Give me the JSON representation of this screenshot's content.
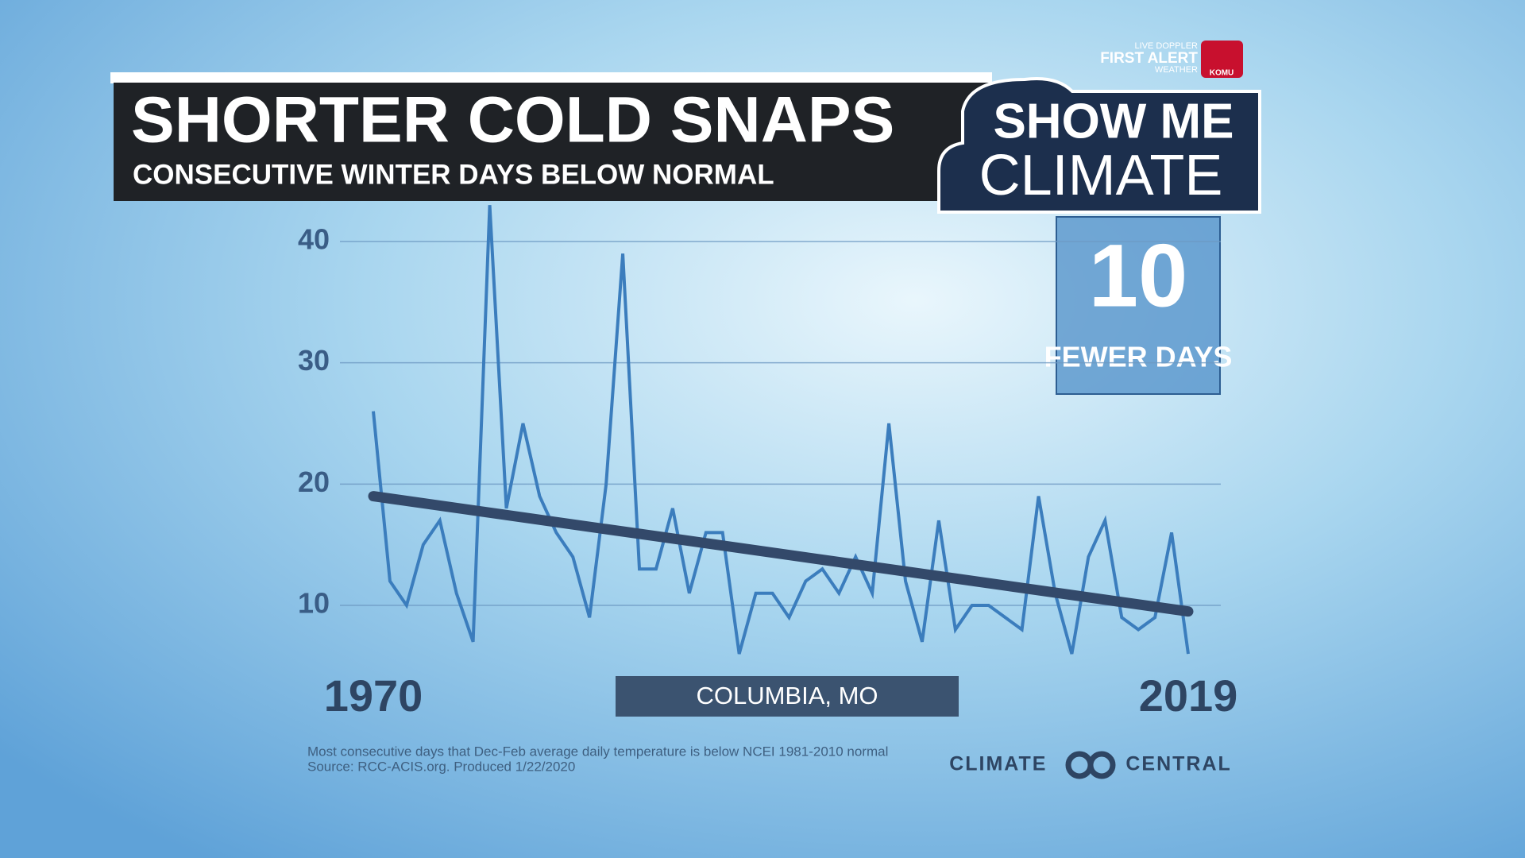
{
  "chart_data": {
    "type": "line",
    "title": "SHORTER COLD SNAPS",
    "subtitle": "CONSECUTIVE WINTER DAYS BELOW NORMAL",
    "x": [
      1970,
      1971,
      1972,
      1973,
      1974,
      1975,
      1976,
      1977,
      1978,
      1979,
      1980,
      1981,
      1982,
      1983,
      1984,
      1985,
      1986,
      1987,
      1988,
      1989,
      1990,
      1991,
      1992,
      1993,
      1994,
      1995,
      1996,
      1997,
      1998,
      1999,
      2000,
      2001,
      2002,
      2003,
      2004,
      2005,
      2006,
      2007,
      2008,
      2009,
      2010,
      2011,
      2012,
      2013,
      2014,
      2015,
      2016,
      2017,
      2018,
      2019
    ],
    "series": [
      {
        "color": "#3b7dbd",
        "values": [
          26,
          12,
          10,
          15,
          17,
          11,
          7,
          43,
          18,
          25,
          19,
          16,
          14,
          9,
          20,
          39,
          13,
          13,
          18,
          11,
          16,
          16,
          6,
          11,
          11,
          9,
          12,
          13,
          11,
          14,
          11,
          25,
          12,
          7,
          17,
          8,
          10,
          10,
          9,
          8,
          19,
          11,
          6,
          14,
          17,
          9,
          8,
          9,
          16,
          6
        ]
      }
    ],
    "trend": {
      "x": [
        1970,
        2019
      ],
      "values": [
        19,
        9.5
      ],
      "color": "#33496a"
    },
    "xlim": [
      1970,
      2019
    ],
    "xticks": [
      1970,
      2019
    ],
    "ylim": [
      5,
      45
    ],
    "yticks": [
      10,
      20,
      30,
      40
    ],
    "grid": true,
    "callout": {
      "number": "10",
      "label": "FEWER DAYS"
    },
    "location": "COLUMBIA, MO",
    "footnote": [
      "Most consecutive days that  Dec-Feb average daily temperature is  below NCEI 1981-2010 normal",
      "Source: RCC-ACIS.org. Produced 1/22/2020"
    ]
  },
  "branding": {
    "show_me": "SHOW ME",
    "climate": "CLIMATE",
    "producer": "CLIMATE CENTRAL",
    "station": [
      "LIVE DOPPLER",
      "FIRST ALERT",
      "WEATHER"
    ],
    "station_call": "KOMU"
  }
}
